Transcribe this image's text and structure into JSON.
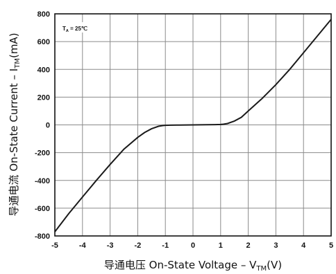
{
  "chart_data": {
    "type": "line",
    "xlabel": {
      "prefix": "导通电压 On-State Voltage – V",
      "sub": "TM",
      "suffix": "(V)"
    },
    "ylabel": {
      "prefix": "导通电流 On-State Current – I",
      "sub": "TM",
      "suffix": "(mA)"
    },
    "annotation": {
      "prefix": "T",
      "sub": "A",
      "suffix": " = 25℃"
    },
    "xlim": [
      -5,
      5
    ],
    "ylim": [
      -800,
      800
    ],
    "x_ticks": [
      -5,
      -4,
      -3,
      -2,
      -1,
      0,
      1,
      2,
      3,
      4,
      5
    ],
    "y_ticks": [
      -800,
      -600,
      -400,
      -200,
      0,
      200,
      400,
      600,
      800
    ],
    "grid": true,
    "series": [
      {
        "x": [
          -5,
          -4.5,
          -4,
          -3.5,
          -3,
          -2.5,
          -2,
          -1.75,
          -1.5,
          -1.25,
          -1.1,
          -1.0,
          -0.8,
          -0.5,
          0,
          0.5,
          0.8,
          1.0,
          1.1,
          1.25,
          1.5,
          1.75,
          2,
          2.5,
          3,
          3.5,
          4,
          4.5,
          5
        ],
        "y": [
          -770,
          -640,
          -520,
          -400,
          -285,
          -175,
          -90,
          -55,
          -28,
          -10,
          -5,
          -3,
          -2,
          -1,
          0,
          1,
          2,
          3,
          5,
          10,
          28,
          55,
          100,
          190,
          290,
          400,
          520,
          640,
          760
        ]
      }
    ]
  }
}
